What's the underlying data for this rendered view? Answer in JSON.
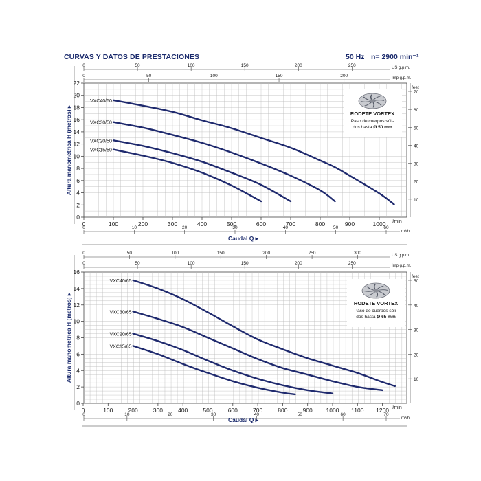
{
  "header": {
    "title": "CURVAS Y DATOS DE PRESTACIONES",
    "frequency": "50 Hz",
    "speed": "n= 2900 min⁻¹"
  },
  "colors": {
    "curve": "#1f2a6e",
    "axis_text": "#1a1a1a",
    "label_text": "#1a2a6c",
    "grid": "#b9b9b9"
  },
  "chart_data": [
    {
      "type": "line",
      "title": "",
      "xlabel": "Caudal Q",
      "xunit": "l/min",
      "xlim": [
        0,
        1100
      ],
      "xticks": [
        0,
        100,
        200,
        300,
        400,
        500,
        600,
        700,
        800,
        900,
        1000
      ],
      "ylabel": "Altura manométrica H (metros)",
      "ylim": [
        0,
        22
      ],
      "yticks": [
        0,
        2,
        4,
        6,
        8,
        10,
        12,
        14,
        16,
        18,
        20,
        22
      ],
      "grid": true,
      "top_axis_1": {
        "unit": "US g.p.m.",
        "ticks": [
          "0",
          "50",
          "100",
          "150",
          "200",
          "250"
        ]
      },
      "top_axis_2": {
        "unit": "Imp g.p.m.",
        "ticks": [
          "0",
          "50",
          "100",
          "150",
          "200"
        ]
      },
      "right_axis": {
        "unit": "feet",
        "ticks": [
          "10",
          "20",
          "30",
          "40",
          "50",
          "60",
          "70"
        ]
      },
      "bottom_axis_2": {
        "unit": "m³/h",
        "ticks": [
          "0",
          "10",
          "20",
          "30",
          "40",
          "50",
          "60"
        ]
      },
      "impeller_box": {
        "title": "RODETE VORTEX",
        "line1": "Paso de cuerpos sóli-",
        "line2": "dos hasta Ø 50 mm"
      },
      "series": [
        {
          "name": "VXC40/50",
          "points": [
            [
              100,
              19.2
            ],
            [
              200,
              18.3
            ],
            [
              300,
              17.3
            ],
            [
              400,
              15.9
            ],
            [
              500,
              14.6
            ],
            [
              600,
              13.0
            ],
            [
              700,
              11.4
            ],
            [
              800,
              9.3
            ],
            [
              850,
              8.2
            ],
            [
              900,
              6.8
            ],
            [
              1000,
              3.9
            ],
            [
              1050,
              2.1
            ]
          ]
        },
        {
          "name": "VXC30/50",
          "points": [
            [
              100,
              15.6
            ],
            [
              200,
              14.7
            ],
            [
              300,
              13.5
            ],
            [
              400,
              12.2
            ],
            [
              500,
              10.6
            ],
            [
              600,
              8.8
            ],
            [
              700,
              6.8
            ],
            [
              800,
              4.4
            ],
            [
              850,
              2.6
            ]
          ]
        },
        {
          "name": "VXC20/50",
          "points": [
            [
              100,
              12.6
            ],
            [
              200,
              11.7
            ],
            [
              300,
              10.5
            ],
            [
              400,
              9.1
            ],
            [
              500,
              7.3
            ],
            [
              600,
              5.3
            ],
            [
              700,
              2.6
            ]
          ]
        },
        {
          "name": "VXC15/50",
          "points": [
            [
              100,
              11.1
            ],
            [
              200,
              10.1
            ],
            [
              300,
              8.9
            ],
            [
              400,
              7.3
            ],
            [
              500,
              5.2
            ],
            [
              600,
              2.6
            ]
          ]
        }
      ]
    },
    {
      "type": "line",
      "title": "",
      "xlabel": "Caudal Q",
      "xunit": "l/min",
      "xlim": [
        0,
        1300
      ],
      "xticks": [
        0,
        100,
        200,
        300,
        400,
        500,
        600,
        700,
        800,
        900,
        1000,
        1100,
        1200
      ],
      "ylabel": "Altura manométrica H (metros)",
      "ylim": [
        0,
        16
      ],
      "yticks": [
        0,
        2,
        4,
        6,
        8,
        10,
        12,
        14,
        16
      ],
      "grid": true,
      "top_axis_1": {
        "unit": "US g.p.m.",
        "ticks": [
          "0",
          "50",
          "100",
          "150",
          "200",
          "250",
          "300"
        ]
      },
      "top_axis_2": {
        "unit": "Imp g.p.m.",
        "ticks": [
          "0",
          "50",
          "100",
          "150",
          "200",
          "250"
        ]
      },
      "right_axis": {
        "unit": "feet",
        "ticks": [
          "10",
          "20",
          "30",
          "40",
          "50"
        ]
      },
      "bottom_axis_2": {
        "unit": "m³/h",
        "ticks": [
          "0",
          "10",
          "20",
          "30",
          "40",
          "50",
          "60",
          "70"
        ]
      },
      "impeller_box": {
        "title": "RODETE VORTEX",
        "line1": "Paso de cuerpos sóli-",
        "line2": "dos hasta Ø 65 mm"
      },
      "series": [
        {
          "name": "VXC40/65",
          "points": [
            [
              200,
              15.0
            ],
            [
              300,
              14.0
            ],
            [
              400,
              12.7
            ],
            [
              500,
              11.1
            ],
            [
              600,
              9.4
            ],
            [
              700,
              7.8
            ],
            [
              800,
              6.6
            ],
            [
              900,
              5.5
            ],
            [
              1000,
              4.6
            ],
            [
              1100,
              3.7
            ],
            [
              1200,
              2.6
            ],
            [
              1250,
              2.1
            ]
          ]
        },
        {
          "name": "VXC30/65",
          "points": [
            [
              200,
              11.2
            ],
            [
              300,
              10.3
            ],
            [
              400,
              9.3
            ],
            [
              500,
              8.0
            ],
            [
              600,
              6.7
            ],
            [
              700,
              5.4
            ],
            [
              800,
              4.3
            ],
            [
              900,
              3.5
            ],
            [
              1000,
              2.7
            ],
            [
              1100,
              2.0
            ],
            [
              1200,
              1.6
            ]
          ]
        },
        {
          "name": "VXC20/65",
          "points": [
            [
              200,
              8.5
            ],
            [
              300,
              7.6
            ],
            [
              400,
              6.5
            ],
            [
              500,
              5.2
            ],
            [
              600,
              4.0
            ],
            [
              700,
              3.0
            ],
            [
              800,
              2.2
            ],
            [
              900,
              1.6
            ],
            [
              1000,
              1.2
            ]
          ]
        },
        {
          "name": "VXC15/65",
          "points": [
            [
              200,
              7.0
            ],
            [
              300,
              6.0
            ],
            [
              400,
              4.8
            ],
            [
              500,
              3.7
            ],
            [
              600,
              2.7
            ],
            [
              700,
              1.9
            ],
            [
              800,
              1.3
            ],
            [
              850,
              1.1
            ]
          ]
        }
      ]
    }
  ]
}
